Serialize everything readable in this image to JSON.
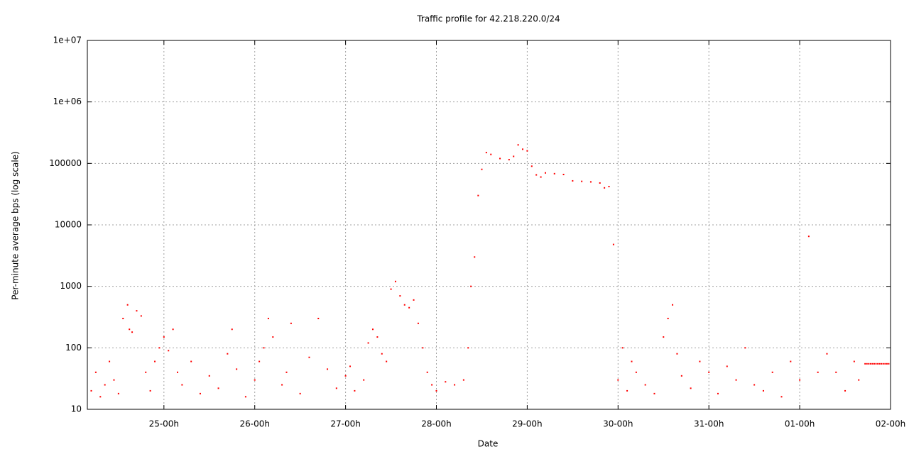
{
  "chart_data": {
    "type": "scatter",
    "title": "Traffic profile for 42.218.220.0/24",
    "x_label": "Date",
    "y_label": "Per-minute average bps (log scale)",
    "color": "#ff0000",
    "log_y": true,
    "grid": true,
    "xlim": [
      0.157,
      9
    ],
    "xticks": [
      {
        "value": 1,
        "label": "25-00h"
      },
      {
        "value": 2,
        "label": "26-00h"
      },
      {
        "value": 3,
        "label": "27-00h"
      },
      {
        "value": 4,
        "label": "28-00h"
      },
      {
        "value": 5,
        "label": "29-00h"
      },
      {
        "value": 6,
        "label": "30-00h"
      },
      {
        "value": 7,
        "label": "31-00h"
      },
      {
        "value": 8,
        "label": "01-00h"
      },
      {
        "value": 9,
        "label": "02-00h"
      }
    ],
    "ylim": [
      10,
      10000000
    ],
    "yticks": [
      10,
      100,
      1000,
      10000,
      100000,
      {
        "value": 1000000,
        "label": "1e+06"
      },
      {
        "value": 10000000,
        "label": "1e+07"
      }
    ],
    "x": [
      0.2,
      0.25,
      0.3,
      0.35,
      0.4,
      0.45,
      0.5,
      0.55,
      0.6,
      0.62,
      0.65,
      0.7,
      0.75,
      0.8,
      0.85,
      0.9,
      0.95,
      1.0,
      1.05,
      1.1,
      1.15,
      1.2,
      1.3,
      1.4,
      1.5,
      1.6,
      1.7,
      1.75,
      1.8,
      1.9,
      2.0,
      2.05,
      2.1,
      2.15,
      2.2,
      2.3,
      2.35,
      2.4,
      2.5,
      2.6,
      2.7,
      2.8,
      2.9,
      3.0,
      3.05,
      3.1,
      3.2,
      3.25,
      3.3,
      3.35,
      3.4,
      3.45,
      3.5,
      3.55,
      3.6,
      3.65,
      3.7,
      3.75,
      3.8,
      3.85,
      3.9,
      3.95,
      4.0,
      4.1,
      4.2,
      4.3,
      4.35,
      4.38,
      4.42,
      4.46,
      4.5,
      4.55,
      4.6,
      4.7,
      4.8,
      4.85,
      4.9,
      4.95,
      5.0,
      5.05,
      5.1,
      5.15,
      5.2,
      5.3,
      5.4,
      5.5,
      5.6,
      5.7,
      5.8,
      5.85,
      5.9,
      5.95,
      6.0,
      6.05,
      6.1,
      6.15,
      6.2,
      6.3,
      6.4,
      6.5,
      6.55,
      6.6,
      6.65,
      6.7,
      6.8,
      6.9,
      7.0,
      7.1,
      7.2,
      7.3,
      7.4,
      7.5,
      7.6,
      7.7,
      7.8,
      7.9,
      8.0,
      8.1,
      8.2,
      8.3,
      8.4,
      8.5,
      8.6,
      8.65,
      8.72,
      8.74,
      8.76,
      8.78,
      8.8,
      8.82,
      8.84,
      8.86,
      8.88,
      8.9,
      8.92,
      8.94,
      8.96,
      8.98
    ],
    "values": [
      20,
      40,
      16,
      25,
      60,
      30,
      18,
      300,
      500,
      200,
      180,
      400,
      330,
      40,
      20,
      60,
      100,
      150,
      90,
      200,
      40,
      25,
      60,
      18,
      35,
      22,
      80,
      200,
      45,
      16,
      30,
      60,
      100,
      300,
      150,
      25,
      40,
      250,
      18,
      70,
      300,
      45,
      22,
      35,
      50,
      20,
      30,
      120,
      200,
      150,
      80,
      60,
      900,
      1200,
      700,
      500,
      450,
      600,
      250,
      100,
      40,
      25,
      20,
      28,
      25,
      30,
      100,
      1000,
      3000,
      30000,
      80000,
      150000,
      140000,
      120000,
      115000,
      130000,
      200000,
      170000,
      160000,
      90000,
      65000,
      60000,
      70000,
      68000,
      66000,
      52000,
      51000,
      50000,
      48000,
      40000,
      42000,
      4800,
      30,
      100,
      20,
      60,
      40,
      25,
      18,
      150,
      300,
      500,
      80,
      35,
      22,
      60,
      40,
      18,
      50,
      30,
      100,
      25,
      20,
      40,
      16,
      60,
      30,
      6500,
      40,
      80,
      40,
      20,
      60,
      30,
      55,
      55,
      55,
      55,
      55,
      55,
      55,
      55,
      55,
      55,
      55,
      55,
      55,
      55
    ]
  }
}
